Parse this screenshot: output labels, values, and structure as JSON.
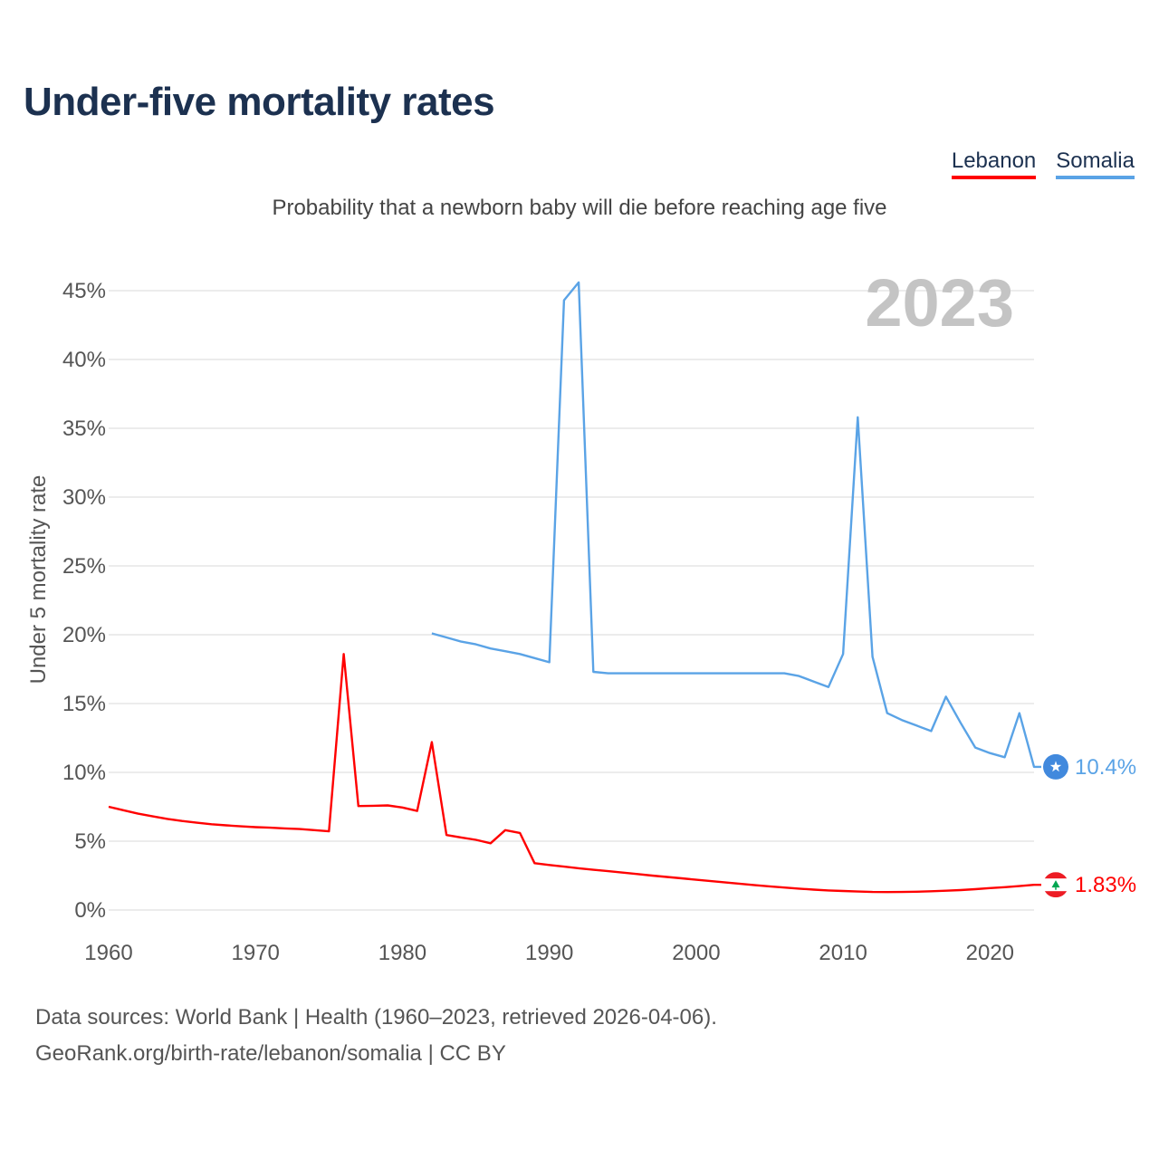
{
  "header": {
    "title": "Under-five mortality rates",
    "subtitle": "Probability that a newborn baby will die before reaching age five"
  },
  "legend": [
    {
      "label": "Lebanon",
      "color": "#ff0000"
    },
    {
      "label": "Somalia",
      "color": "#5aa3e6"
    }
  ],
  "footer": {
    "line1": "Data sources: World Bank | Health (1960–2023, retrieved 2026-04-06).",
    "line2": "GeoRank.org/birth-rate/lebanon/somalia | CC BY"
  },
  "chart_data": {
    "type": "line",
    "year_label": "2023",
    "ylabel": "Under 5 mortality rate",
    "xlim": [
      1960,
      2023
    ],
    "ylim": [
      0,
      45
    ],
    "x_ticks": [
      1960,
      1970,
      1980,
      1990,
      2000,
      2010,
      2020
    ],
    "y_ticks": [
      {
        "value": 0,
        "label": "0%"
      },
      {
        "value": 5,
        "label": "5%"
      },
      {
        "value": 10,
        "label": "10%"
      },
      {
        "value": 15,
        "label": "15%"
      },
      {
        "value": 20,
        "label": "20%"
      },
      {
        "value": 25,
        "label": "25%"
      },
      {
        "value": 30,
        "label": "30%"
      },
      {
        "value": 35,
        "label": "35%"
      },
      {
        "value": 40,
        "label": "40%"
      },
      {
        "value": 45,
        "label": "45%"
      }
    ],
    "series": [
      {
        "name": "Lebanon",
        "color": "#ff0000",
        "end_label": "1.83%",
        "flag_icon": "lebanon-flag-icon",
        "x": [
          1960,
          1961,
          1962,
          1963,
          1964,
          1965,
          1966,
          1967,
          1968,
          1969,
          1970,
          1971,
          1972,
          1973,
          1974,
          1975,
          1976,
          1977,
          1978,
          1979,
          1980,
          1981,
          1982,
          1983,
          1984,
          1985,
          1986,
          1987,
          1988,
          1989,
          1990,
          1991,
          1992,
          1993,
          1994,
          1995,
          1996,
          1997,
          1998,
          1999,
          2000,
          2001,
          2002,
          2003,
          2004,
          2005,
          2006,
          2007,
          2008,
          2009,
          2010,
          2011,
          2012,
          2013,
          2014,
          2015,
          2016,
          2017,
          2018,
          2019,
          2020,
          2021,
          2022,
          2023
        ],
        "values": [
          7.5,
          7.25,
          7.0,
          6.8,
          6.62,
          6.47,
          6.34,
          6.23,
          6.15,
          6.08,
          6.02,
          5.98,
          5.93,
          5.88,
          5.8,
          5.72,
          18.6,
          7.55,
          7.57,
          7.6,
          7.45,
          7.2,
          12.2,
          5.45,
          5.27,
          5.1,
          4.85,
          5.8,
          5.6,
          3.4,
          3.27,
          3.15,
          3.03,
          2.92,
          2.82,
          2.72,
          2.61,
          2.5,
          2.4,
          2.3,
          2.2,
          2.1,
          2.0,
          1.9,
          1.8,
          1.72,
          1.63,
          1.55,
          1.48,
          1.42,
          1.38,
          1.34,
          1.31,
          1.3,
          1.31,
          1.33,
          1.36,
          1.4,
          1.45,
          1.51,
          1.59,
          1.66,
          1.74,
          1.83
        ]
      },
      {
        "name": "Somalia",
        "color": "#5aa3e6",
        "end_label": "10.4%",
        "flag_icon": "somalia-flag-icon",
        "x": [
          1982,
          1983,
          1984,
          1985,
          1986,
          1987,
          1988,
          1989,
          1990,
          1991,
          1992,
          1993,
          1994,
          1995,
          1996,
          1997,
          1998,
          1999,
          2000,
          2001,
          2002,
          2003,
          2004,
          2005,
          2006,
          2007,
          2008,
          2009,
          2010,
          2011,
          2012,
          2013,
          2014,
          2015,
          2016,
          2017,
          2018,
          2019,
          2020,
          2021,
          2022,
          2023
        ],
        "values": [
          20.1,
          19.8,
          19.5,
          19.3,
          19.0,
          18.8,
          18.6,
          18.3,
          18.0,
          44.3,
          45.6,
          17.3,
          17.2,
          17.2,
          17.2,
          17.2,
          17.2,
          17.2,
          17.2,
          17.2,
          17.2,
          17.2,
          17.2,
          17.2,
          17.2,
          17.0,
          16.6,
          16.2,
          18.6,
          35.8,
          18.4,
          14.3,
          13.8,
          13.4,
          13.0,
          15.5,
          13.6,
          11.8,
          11.4,
          11.1,
          14.3,
          10.4
        ]
      }
    ]
  }
}
